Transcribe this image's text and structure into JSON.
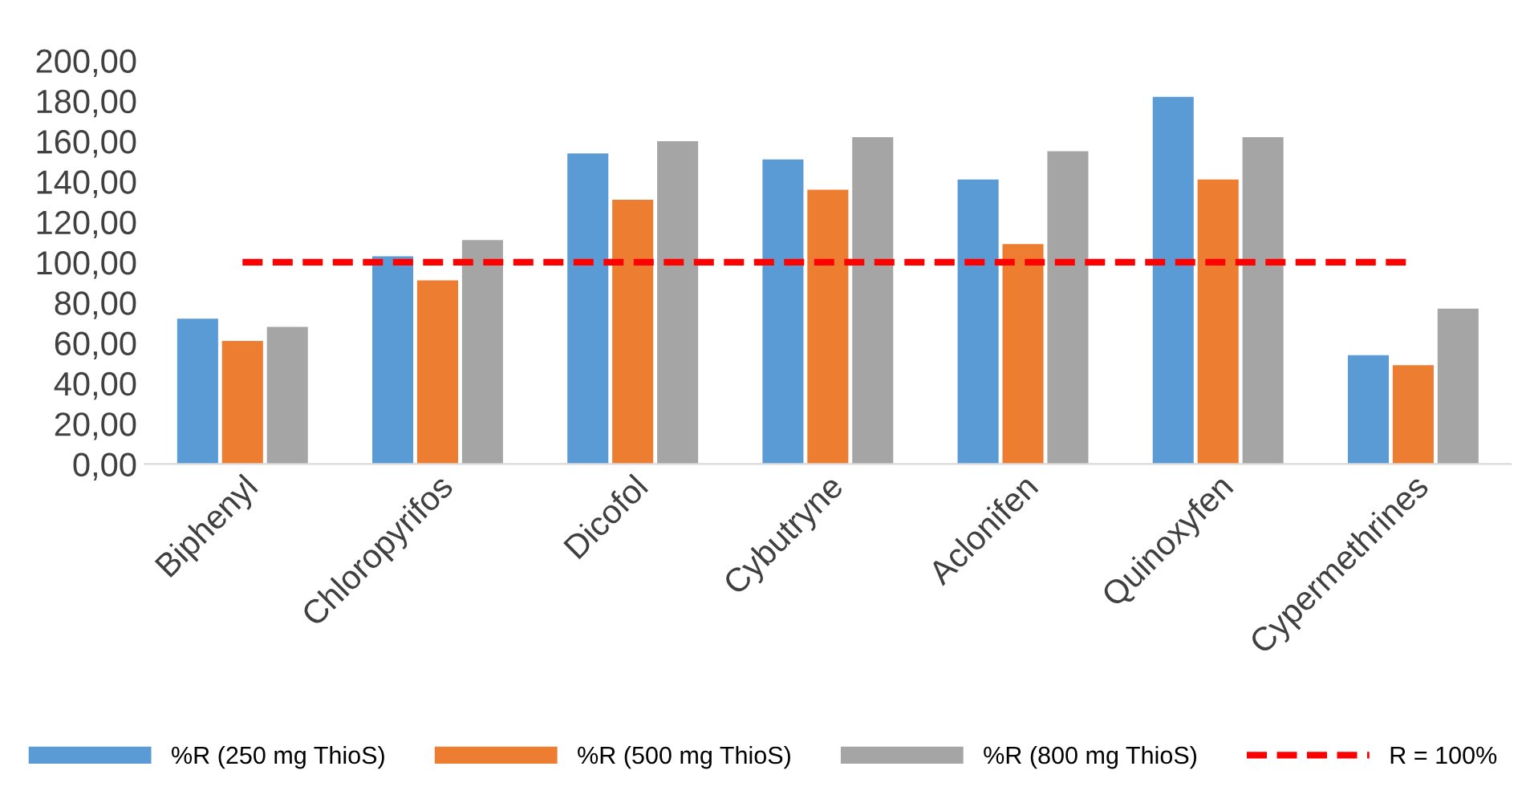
{
  "chart_data": {
    "type": "bar",
    "categories": [
      "Biphenyl",
      "Chloropyrifos",
      "Dicofol",
      "Cybutryne",
      "Aclonifen",
      "Quinoxyfen",
      "Cypermethrines"
    ],
    "series": [
      {
        "name": "%R (250 mg ThioS)",
        "color": "#5b9bd5",
        "values": [
          72,
          103,
          154,
          151,
          141,
          182,
          54
        ]
      },
      {
        "name": "%R (500 mg ThioS)",
        "color": "#ed7d31",
        "values": [
          61,
          91,
          131,
          136,
          109,
          141,
          49
        ]
      },
      {
        "name": "%R (800 mg ThioS)",
        "color": "#a5a5a5",
        "values": [
          68,
          111,
          160,
          162,
          155,
          162,
          77
        ]
      },
      {
        "name": "R = 100%",
        "type": "line",
        "color": "#ff0000",
        "line_style": "dashed",
        "values": [
          100,
          100,
          100,
          100,
          100,
          100,
          100
        ]
      }
    ],
    "ylim": [
      0,
      200
    ],
    "yticks": [
      {
        "value": 0,
        "label": "0,00"
      },
      {
        "value": 20,
        "label": "20,00"
      },
      {
        "value": 40,
        "label": "40,00"
      },
      {
        "value": 60,
        "label": "60,00"
      },
      {
        "value": 80,
        "label": "80,00"
      },
      {
        "value": 100,
        "label": "100,00"
      },
      {
        "value": 120,
        "label": "120,00"
      },
      {
        "value": 140,
        "label": "140,00"
      },
      {
        "value": 160,
        "label": "160,00"
      },
      {
        "value": 180,
        "label": "180,00"
      },
      {
        "value": 200,
        "label": "200,00"
      }
    ],
    "grid": false,
    "legend": "bottom"
  }
}
